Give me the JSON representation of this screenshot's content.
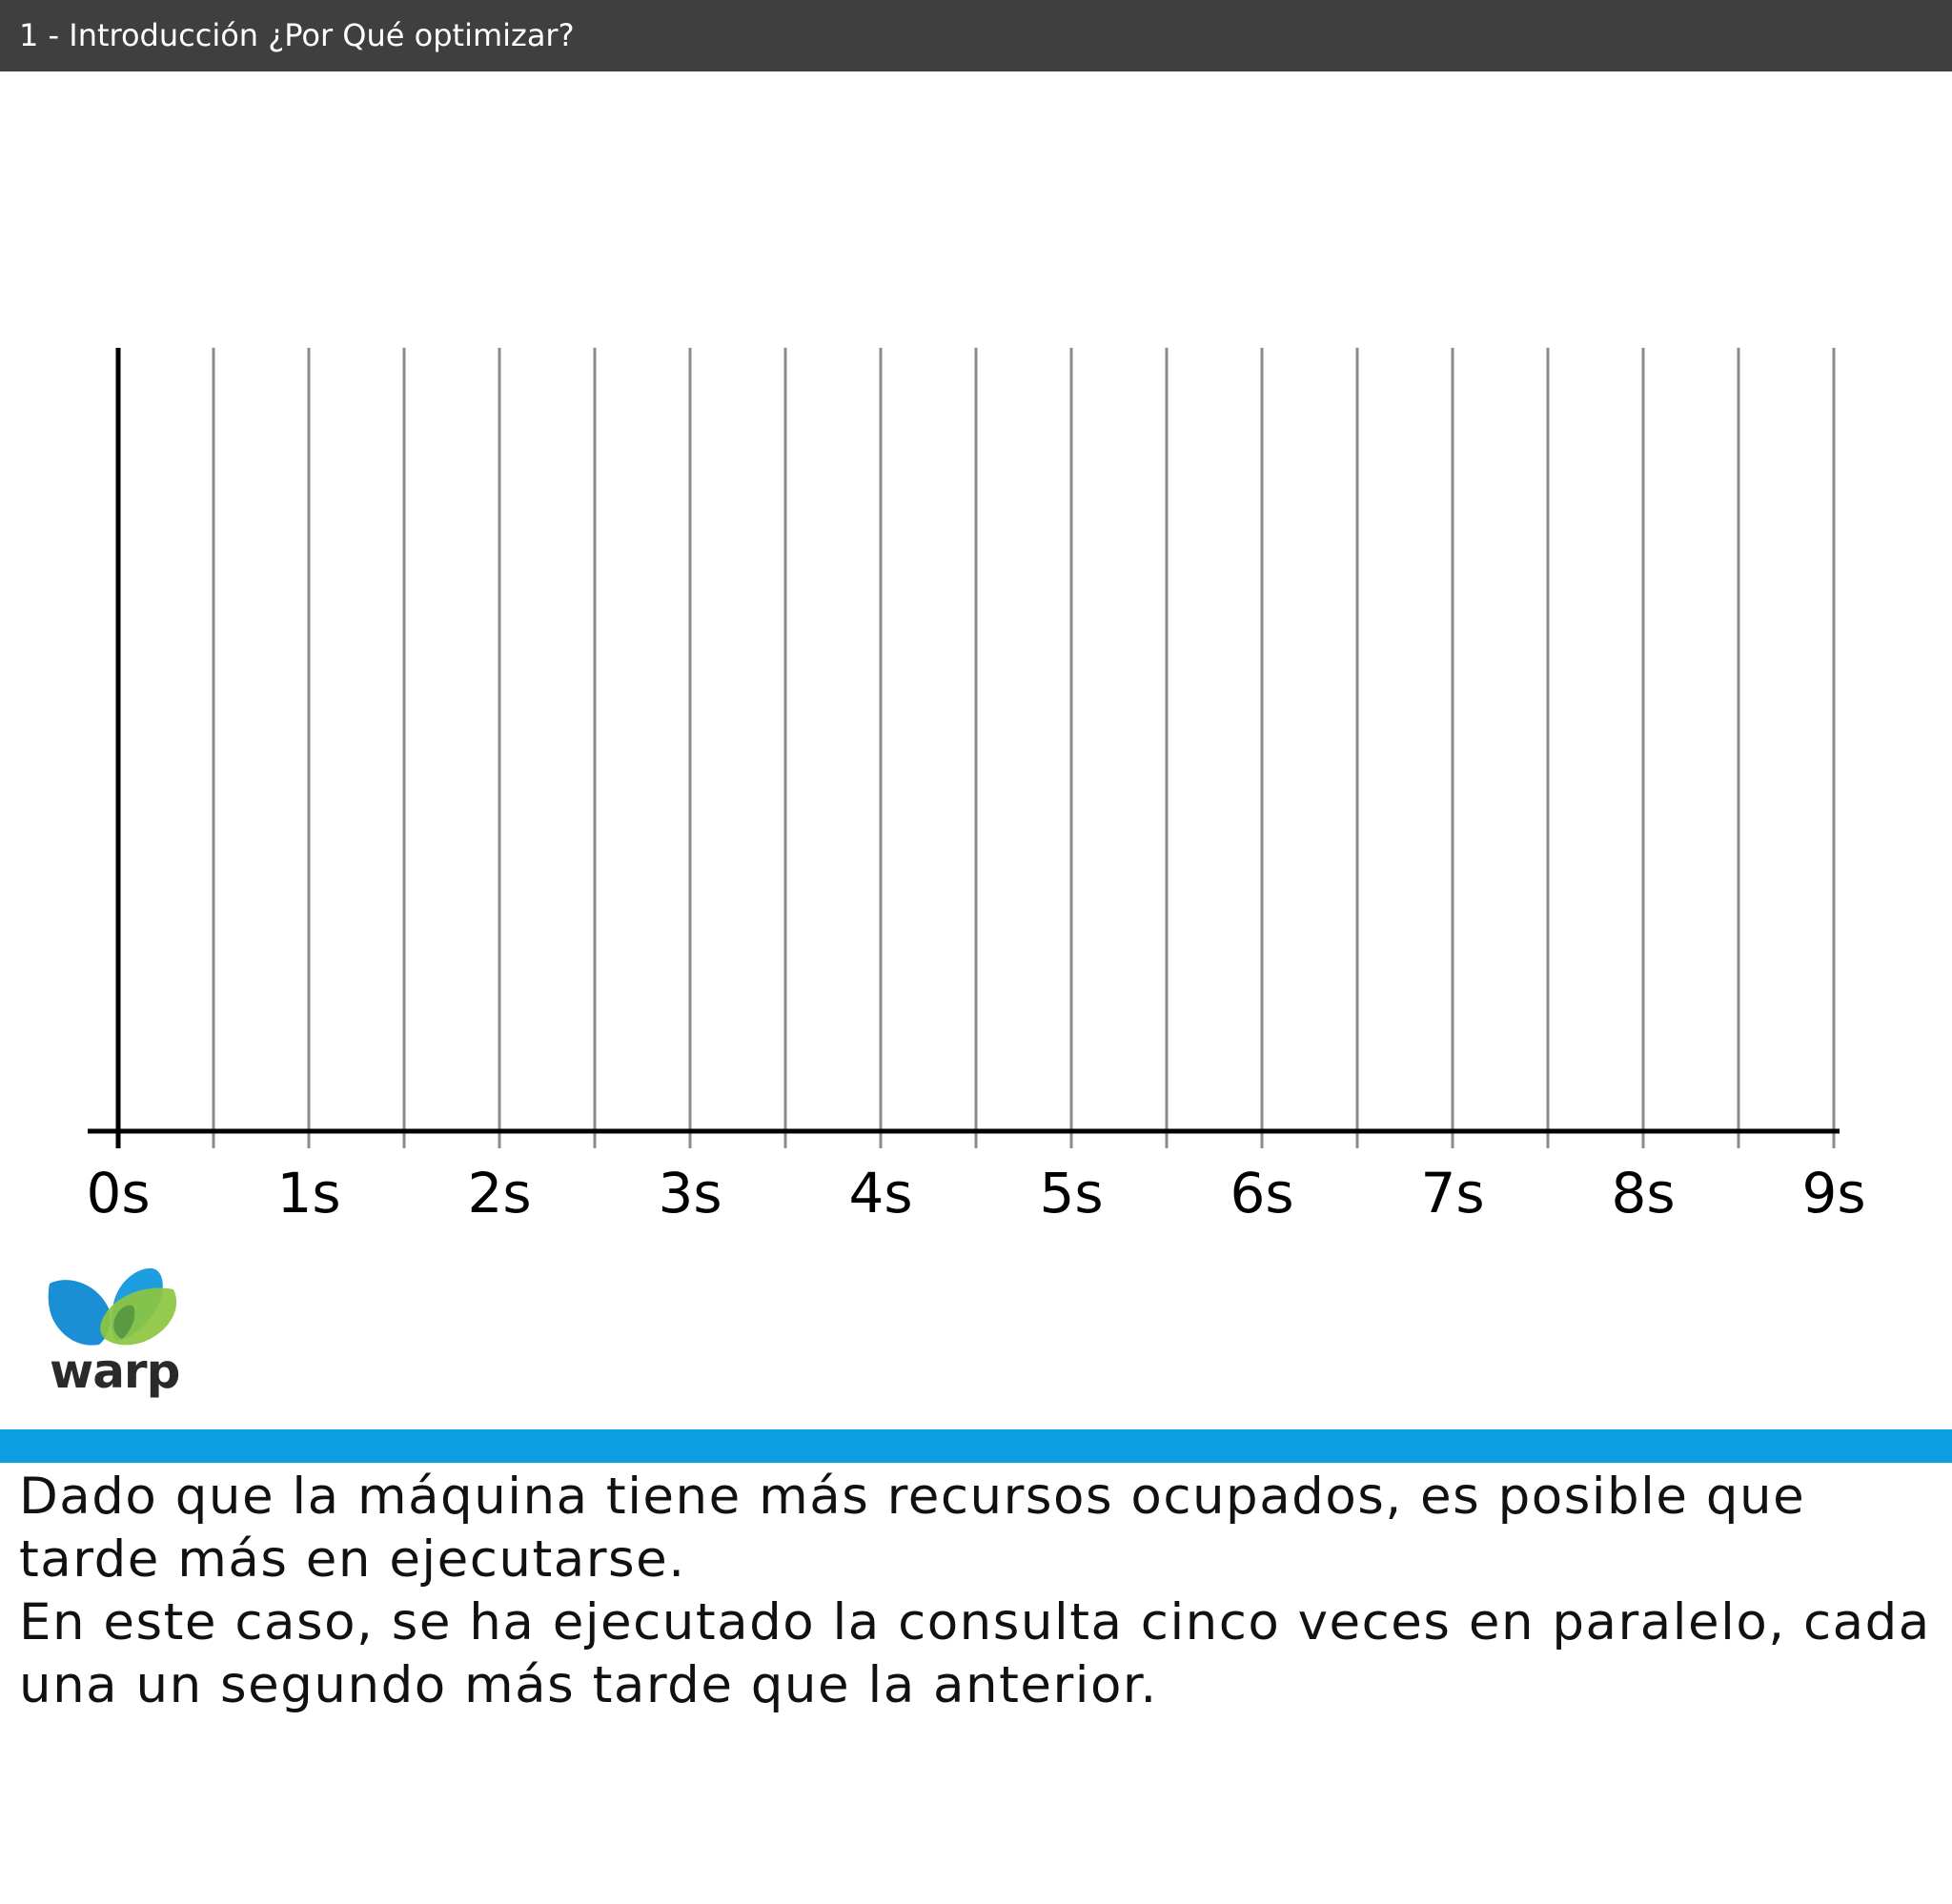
{
  "header": {
    "title": "1 - Introducción ¿Por Qué optimizar?"
  },
  "timeline": {
    "tick_labels": [
      "0s",
      "1s",
      "2s",
      "3s",
      "4s",
      "5s",
      "6s",
      "7s",
      "8s",
      "9s"
    ],
    "min_seconds": 0,
    "max_seconds": 9,
    "gridline_step_seconds": 0.5,
    "colors": {
      "axis": "#000000",
      "gridline": "#8c8c8c"
    }
  },
  "logo": {
    "text": "warp",
    "colors": {
      "blue": "#1a8fd6",
      "green": "#8cc63f",
      "dark": "#2a2a2a"
    }
  },
  "colors": {
    "header_bg": "#3f3f3f",
    "accent_bar": "#0b9ee0"
  },
  "caption": {
    "lines": [
      "Dado que la máquina tiene más recursos ocupados, es posible que tarde más en ejecutarse.",
      "En este caso, se ha ejecutado la consulta cinco veces en paralelo, cada una un segundo más tarde que la anterior."
    ]
  }
}
